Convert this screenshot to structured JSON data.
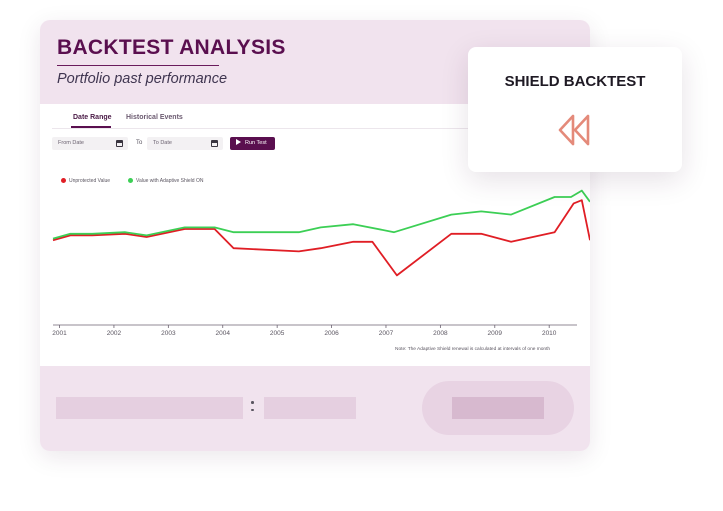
{
  "header": {
    "title": "BACKTEST ANALYSIS",
    "subtitle": "Portfolio past performance"
  },
  "tabs": [
    {
      "label": "Date Range",
      "active": true
    },
    {
      "label": "Historical Events",
      "active": false
    }
  ],
  "controls": {
    "from_placeholder": "From Date",
    "to_label": "To",
    "to_placeholder": "To Date",
    "run_label": "Run Test"
  },
  "legend": [
    {
      "label": "Unprotected Value",
      "color": "#e01e25"
    },
    {
      "label": "Value with Adaptive Shield ON",
      "color": "#3ccf55"
    }
  ],
  "note": "Note: The Adaptive Shield renewal is calculated at intervals of one month",
  "popup": {
    "title": "SHIELD BACKTEST",
    "icon": "rewind-icon",
    "icon_color": "#e48a7a"
  },
  "colors": {
    "brand": "#5a0f4f",
    "header_bg": "#f1e3ee"
  },
  "chart_data": {
    "type": "line",
    "x_ticks": [
      "2001",
      "2002",
      "2003",
      "2004",
      "2005",
      "2006",
      "2007",
      "2008",
      "2009",
      "2010"
    ],
    "xlim": [
      2000.88,
      2010.75
    ],
    "ylim": [
      0,
      100
    ],
    "series": [
      {
        "name": "Unprotected Value",
        "color": "#e01e25",
        "x": [
          2000.88,
          2001.2,
          2001.6,
          2002.2,
          2002.6,
          2003.3,
          2003.85,
          2004.2,
          2005.4,
          2005.8,
          2006.4,
          2006.75,
          2007.2,
          2008.2,
          2008.75,
          2009.3,
          2010.1,
          2010.45,
          2010.6,
          2010.75
        ],
        "y": [
          53,
          56,
          56,
          57,
          55,
          60,
          60,
          48,
          46,
          48,
          52,
          52,
          31,
          57,
          57,
          52,
          58,
          76,
          78,
          53
        ]
      },
      {
        "name": "Value with Adaptive Shield ON",
        "color": "#3ccf55",
        "x": [
          2000.88,
          2001.2,
          2001.6,
          2002.2,
          2002.6,
          2003.3,
          2003.85,
          2004.2,
          2005.4,
          2005.8,
          2006.4,
          2007.15,
          2008.2,
          2008.75,
          2009.3,
          2010.1,
          2010.4,
          2010.6,
          2010.75
        ],
        "y": [
          54,
          57,
          57,
          58,
          56,
          61,
          61,
          58,
          58,
          61,
          63,
          58,
          69,
          71,
          69,
          80,
          80,
          84,
          77
        ]
      }
    ]
  }
}
